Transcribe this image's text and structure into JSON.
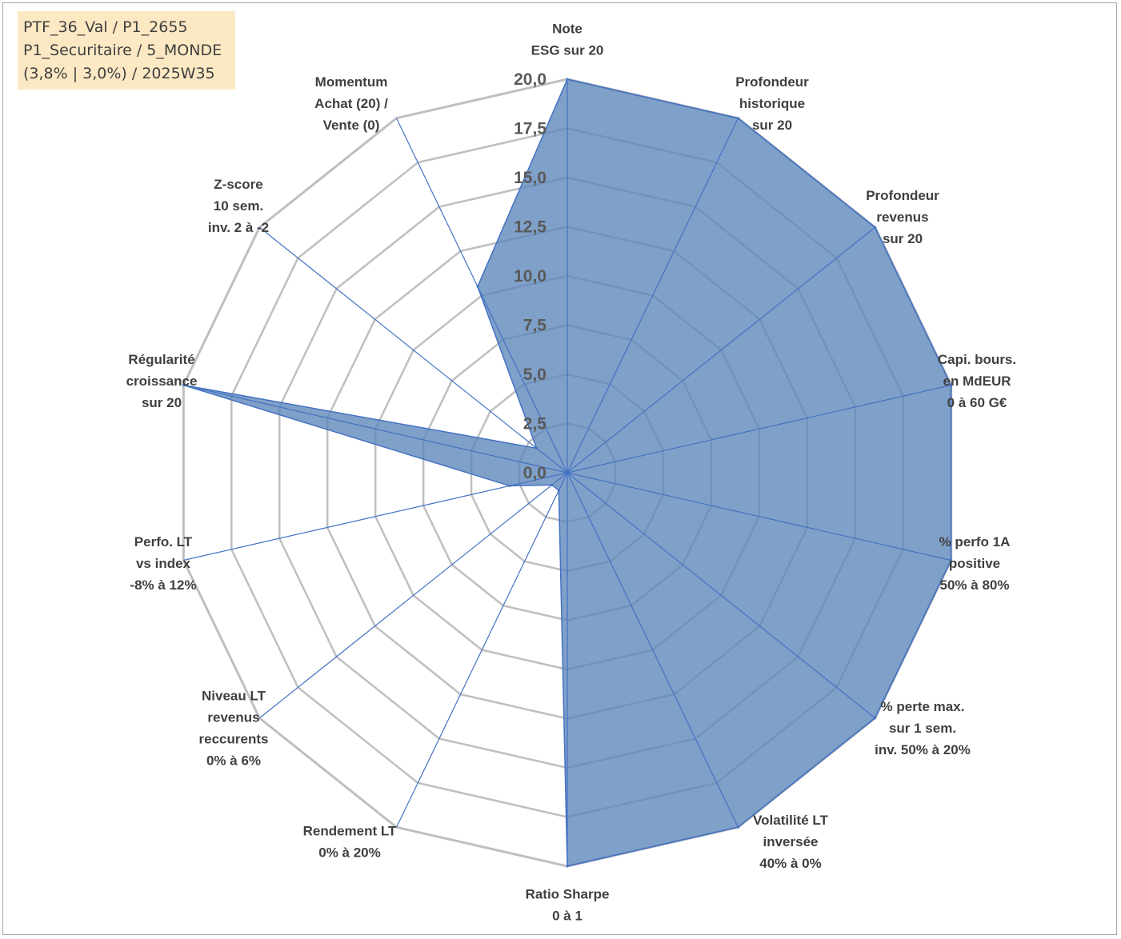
{
  "info_box": {
    "line1": "PTF_36_Val / P1_2655",
    "line2": "P1_Securitaire / 5_MONDE",
    "line3": "(3,8% | 3,0%) / 2025W35"
  },
  "chart_data": {
    "type": "radar",
    "axes": [
      [
        "Note",
        "ESG sur 20"
      ],
      [
        "Profondeur",
        "historique",
        "sur 20"
      ],
      [
        "Profondeur",
        "revenus",
        "sur 20"
      ],
      [
        "Capi. bours.",
        "en MdEUR",
        "0 à 60 G€"
      ],
      [
        "% perfo 1A",
        "positive",
        "50% à 80%"
      ],
      [
        "% perte max.",
        "sur 1 sem.",
        "inv. 50% à 20%"
      ],
      [
        "Volatilité LT",
        "inversée",
        "40% à 0%"
      ],
      [
        "Ratio Sharpe",
        "0 à 1"
      ],
      [
        "Rendement LT",
        "0% à 20%"
      ],
      [
        "Niveau LT",
        "revenus",
        "reccurents",
        "0% à 6%"
      ],
      [
        "Perfo. LT",
        "vs index",
        "-8% à 12%"
      ],
      [
        "Régularité",
        "croissance",
        "sur 20"
      ],
      [
        "Z-score",
        "10 sem.",
        "inv. 2 à -2"
      ],
      [
        "Momentum",
        "Achat (20) /",
        "Vente (0)"
      ]
    ],
    "series": [
      {
        "values": [
          20,
          20,
          20,
          20,
          20,
          20,
          20,
          20,
          1.0,
          1.0,
          3.0,
          20,
          2.0,
          10.5
        ]
      }
    ],
    "rlim": [
      0,
      20
    ],
    "ticks": [
      "0,0",
      "2,5",
      "5,0",
      "7,5",
      "10,0",
      "12,5",
      "15,0",
      "17,5",
      "20,0"
    ],
    "grid": true,
    "colors": {
      "fill": "#5b85b8",
      "line": "#4472c4",
      "grid": "#bfbfbf"
    }
  }
}
